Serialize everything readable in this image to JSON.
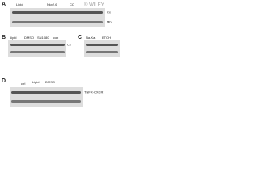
{
  "watermark": "© WILEY",
  "panels": [
    {
      "label": "A",
      "headers": [
        "Lipid",
        "Nkx2.6",
        "CO"
      ],
      "bands": [
        "Cx",
        "Mb"
      ]
    },
    {
      "label": "B",
      "headers": [
        "Lipid",
        "DMSO",
        "SN1080",
        "cox"
      ],
      "bands": [
        "Cx"
      ]
    },
    {
      "label": "C",
      "headers": [
        "Na-Ka",
        "ETOH"
      ],
      "bands": []
    },
    {
      "label": "D",
      "headers": [
        "ctrl",
        "Lipid",
        "DMSO"
      ],
      "bands": [
        "TNFR-CXCR"
      ]
    }
  ]
}
